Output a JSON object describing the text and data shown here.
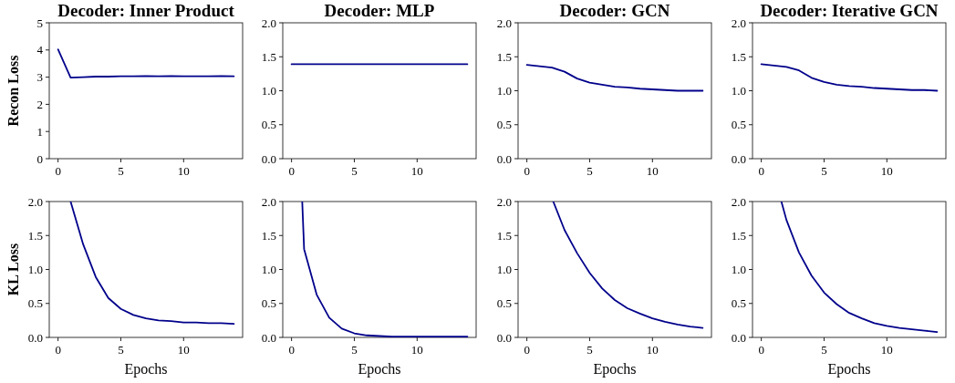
{
  "chart_data": [
    {
      "type": "line",
      "title": "Decoder: Inner Product",
      "ylabel": "Recon Loss",
      "x": [
        0,
        1,
        2,
        3,
        4,
        5,
        6,
        7,
        8,
        9,
        10,
        11,
        12,
        13,
        14
      ],
      "series": [
        {
          "color": "#00008b",
          "values": [
            4.02,
            2.98,
            3.0,
            3.02,
            3.02,
            3.03,
            3.03,
            3.04,
            3.03,
            3.04,
            3.03,
            3.03,
            3.03,
            3.04,
            3.03
          ]
        }
      ],
      "xlim": [
        -0.7,
        14.7
      ],
      "ylim": [
        0,
        5
      ],
      "xticks": [
        0,
        5,
        10
      ],
      "yticks": [
        0,
        1,
        2,
        3,
        4,
        5
      ]
    },
    {
      "type": "line",
      "title": "Decoder: MLP",
      "x": [
        0,
        1,
        2,
        3,
        4,
        5,
        6,
        7,
        8,
        9,
        10,
        11,
        12,
        13,
        14
      ],
      "series": [
        {
          "color": "#00008b",
          "values": [
            1.39,
            1.39,
            1.39,
            1.39,
            1.39,
            1.39,
            1.39,
            1.39,
            1.39,
            1.39,
            1.39,
            1.39,
            1.39,
            1.39,
            1.39
          ]
        }
      ],
      "xlim": [
        -0.7,
        14.7
      ],
      "ylim": [
        0,
        2
      ],
      "xticks": [
        0,
        5,
        10
      ],
      "yticks": [
        {
          "value": 0,
          "label": "0.0"
        },
        {
          "value": 0.5,
          "label": "0.5"
        },
        {
          "value": 1,
          "label": "1.0"
        },
        {
          "value": 1.5,
          "label": "1.5"
        },
        {
          "value": 2,
          "label": "2.0"
        }
      ]
    },
    {
      "type": "line",
      "title": "Decoder: GCN",
      "x": [
        0,
        1,
        2,
        3,
        4,
        5,
        6,
        7,
        8,
        9,
        10,
        11,
        12,
        13,
        14
      ],
      "series": [
        {
          "color": "#00008b",
          "values": [
            1.38,
            1.36,
            1.34,
            1.28,
            1.18,
            1.12,
            1.09,
            1.06,
            1.05,
            1.03,
            1.02,
            1.01,
            1.0,
            1.0,
            1.0
          ]
        }
      ],
      "xlim": [
        -0.7,
        14.7
      ],
      "ylim": [
        0,
        2
      ],
      "xticks": [
        0,
        5,
        10
      ],
      "yticks": [
        {
          "value": 0,
          "label": "0.0"
        },
        {
          "value": 0.5,
          "label": "0.5"
        },
        {
          "value": 1,
          "label": "1.0"
        },
        {
          "value": 1.5,
          "label": "1.5"
        },
        {
          "value": 2,
          "label": "2.0"
        }
      ]
    },
    {
      "type": "line",
      "title": "Decoder: Iterative GCN",
      "x": [
        0,
        1,
        2,
        3,
        4,
        5,
        6,
        7,
        8,
        9,
        10,
        11,
        12,
        13,
        14
      ],
      "series": [
        {
          "color": "#00008b",
          "values": [
            1.39,
            1.37,
            1.35,
            1.3,
            1.19,
            1.13,
            1.09,
            1.07,
            1.06,
            1.04,
            1.03,
            1.02,
            1.01,
            1.01,
            1.0
          ]
        }
      ],
      "xlim": [
        -0.7,
        14.7
      ],
      "ylim": [
        0,
        2
      ],
      "xticks": [
        0,
        5,
        10
      ],
      "yticks": [
        {
          "value": 0,
          "label": "0.0"
        },
        {
          "value": 0.5,
          "label": "0.5"
        },
        {
          "value": 1,
          "label": "1.0"
        },
        {
          "value": 1.5,
          "label": "1.5"
        },
        {
          "value": 2,
          "label": "2.0"
        }
      ]
    },
    {
      "type": "line",
      "ylabel": "KL Loss",
      "xlabel": "Epochs",
      "x": [
        1,
        2,
        3,
        4,
        5,
        6,
        7,
        8,
        9,
        10,
        11,
        12,
        13,
        14
      ],
      "series": [
        {
          "color": "#00008b",
          "values": [
            2.0,
            1.37,
            0.89,
            0.58,
            0.42,
            0.33,
            0.28,
            0.25,
            0.24,
            0.22,
            0.22,
            0.21,
            0.21,
            0.2
          ]
        }
      ],
      "xlim": [
        -0.7,
        14.7
      ],
      "ylim": [
        0,
        2
      ],
      "xticks": [
        0,
        5,
        10
      ],
      "yticks": [
        {
          "value": 0,
          "label": "0.0"
        },
        {
          "value": 0.5,
          "label": "0.5"
        },
        {
          "value": 1,
          "label": "1.0"
        },
        {
          "value": 1.5,
          "label": "1.5"
        },
        {
          "value": 2,
          "label": "2.0"
        }
      ]
    },
    {
      "type": "line",
      "xlabel": "Epochs",
      "x": [
        0.85,
        1,
        2,
        3,
        4,
        5,
        6,
        7,
        8,
        9,
        10,
        11,
        12,
        13,
        14
      ],
      "series": [
        {
          "color": "#00008b",
          "values": [
            2.0,
            1.3,
            0.63,
            0.29,
            0.13,
            0.06,
            0.03,
            0.02,
            0.01,
            0.01,
            0.01,
            0.01,
            0.01,
            0.01,
            0.01
          ]
        }
      ],
      "xlim": [
        -0.7,
        14.7
      ],
      "ylim": [
        0,
        2
      ],
      "xticks": [
        0,
        5,
        10
      ],
      "yticks": [
        {
          "value": 0,
          "label": "0.0"
        },
        {
          "value": 0.5,
          "label": "0.5"
        },
        {
          "value": 1,
          "label": "1.0"
        },
        {
          "value": 1.5,
          "label": "1.5"
        },
        {
          "value": 2,
          "label": "2.0"
        }
      ]
    },
    {
      "type": "line",
      "xlabel": "Epochs",
      "x": [
        2.1,
        3,
        4,
        5,
        6,
        7,
        8,
        9,
        10,
        11,
        12,
        13,
        14
      ],
      "series": [
        {
          "color": "#00008b",
          "values": [
            2.0,
            1.58,
            1.24,
            0.95,
            0.72,
            0.55,
            0.43,
            0.35,
            0.28,
            0.23,
            0.19,
            0.16,
            0.14
          ]
        }
      ],
      "xlim": [
        -0.7,
        14.7
      ],
      "ylim": [
        0,
        2
      ],
      "xticks": [
        0,
        5,
        10
      ],
      "yticks": [
        {
          "value": 0,
          "label": "0.0"
        },
        {
          "value": 0.5,
          "label": "0.5"
        },
        {
          "value": 1,
          "label": "1.0"
        },
        {
          "value": 1.5,
          "label": "1.5"
        },
        {
          "value": 2,
          "label": "2.0"
        }
      ]
    },
    {
      "type": "line",
      "xlabel": "Epochs",
      "x": [
        1.6,
        2,
        3,
        4,
        5,
        6,
        7,
        8,
        9,
        10,
        11,
        12,
        13,
        14
      ],
      "series": [
        {
          "color": "#00008b",
          "values": [
            2.0,
            1.73,
            1.25,
            0.91,
            0.66,
            0.49,
            0.36,
            0.28,
            0.21,
            0.17,
            0.14,
            0.12,
            0.1,
            0.08
          ]
        }
      ],
      "xlim": [
        -0.7,
        14.7
      ],
      "ylim": [
        0,
        2
      ],
      "xticks": [
        0,
        5,
        10
      ],
      "yticks": [
        {
          "value": 0,
          "label": "0.0"
        },
        {
          "value": 0.5,
          "label": "0.5"
        },
        {
          "value": 1,
          "label": "1.0"
        },
        {
          "value": 1.5,
          "label": "1.5"
        },
        {
          "value": 2,
          "label": "2.0"
        }
      ]
    }
  ]
}
